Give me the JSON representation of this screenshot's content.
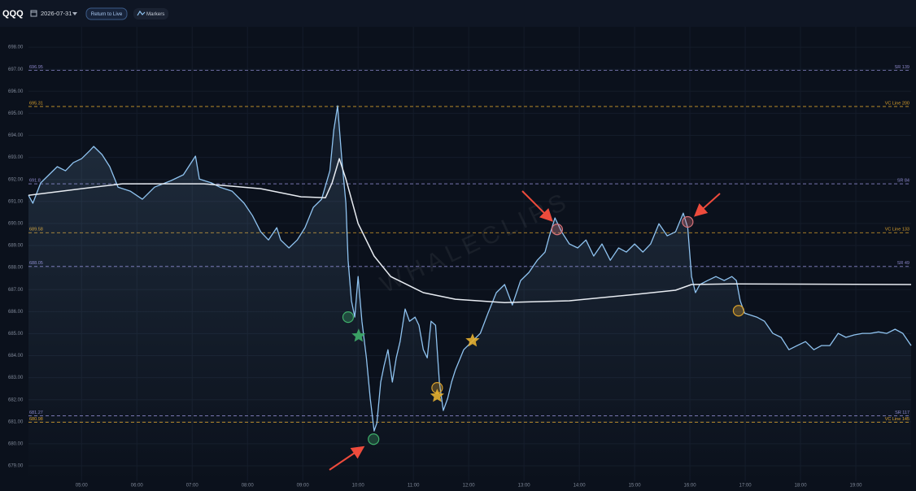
{
  "toolbar": {
    "ticker": "QQQ",
    "date": "2026-07-31",
    "buttons": [
      "Return to Live",
      "Markers"
    ]
  },
  "chart_data": {
    "type": "line",
    "watermark": "WHALECLIPS",
    "xlim": [
      4.04,
      20.0
    ],
    "ylim": [
      678.3,
      699.0
    ],
    "xticks": [
      {
        "value": 5,
        "label": "05:00"
      },
      {
        "value": 6,
        "label": "06:00"
      },
      {
        "value": 7,
        "label": "07:00"
      },
      {
        "value": 8,
        "label": "08:00"
      },
      {
        "value": 9,
        "label": "09:00"
      },
      {
        "value": 10,
        "label": "10:00"
      },
      {
        "value": 11,
        "label": "11:00"
      },
      {
        "value": 12,
        "label": "12:00"
      },
      {
        "value": 13,
        "label": "13:00"
      },
      {
        "value": 14,
        "label": "14:00"
      },
      {
        "value": 15,
        "label": "15:00"
      },
      {
        "value": 16,
        "label": "16:00"
      },
      {
        "value": 17,
        "label": "17:00"
      },
      {
        "value": 18,
        "label": "18:00"
      },
      {
        "value": 19,
        "label": "19:00"
      }
    ],
    "yticks": [
      {
        "value": 679,
        "label": "679.00"
      },
      {
        "value": 680,
        "label": "680.00"
      },
      {
        "value": 681,
        "label": "681.00"
      },
      {
        "value": 682,
        "label": "682.00"
      },
      {
        "value": 683,
        "label": "683.00"
      },
      {
        "value": 684,
        "label": "684.00"
      },
      {
        "value": 685,
        "label": "685.00"
      },
      {
        "value": 686,
        "label": "686.00"
      },
      {
        "value": 687,
        "label": "687.00"
      },
      {
        "value": 688,
        "label": "688.00"
      },
      {
        "value": 689,
        "label": "689.00"
      },
      {
        "value": 690,
        "label": "690.00"
      },
      {
        "value": 691,
        "label": "691.00"
      },
      {
        "value": 692,
        "label": "692.00"
      },
      {
        "value": 693,
        "label": "693.00"
      },
      {
        "value": 694,
        "label": "694.00"
      },
      {
        "value": 695,
        "label": "695.00"
      },
      {
        "value": 696,
        "label": "696.00"
      },
      {
        "value": 697,
        "label": "697.00"
      },
      {
        "value": 698,
        "label": "698.00"
      }
    ],
    "grid": true,
    "series": [
      {
        "color": "#8fc3f0",
        "area": true,
        "x": [
          4.04,
          4.12,
          4.26,
          4.41,
          4.56,
          4.71,
          4.85,
          5.0,
          5.15,
          5.22,
          5.37,
          5.51,
          5.66,
          5.88,
          6.1,
          6.32,
          6.62,
          6.84,
          7.06,
          7.13,
          7.35,
          7.5,
          7.72,
          7.94,
          8.09,
          8.24,
          8.38,
          8.53,
          8.6,
          8.75,
          8.9,
          9.04,
          9.19,
          9.34,
          9.49,
          9.56,
          9.63,
          9.71,
          9.78,
          9.82,
          9.88,
          9.94,
          10.0,
          10.07,
          10.15,
          10.22,
          10.29,
          10.34,
          10.41,
          10.47,
          10.54,
          10.62,
          10.69,
          10.76,
          10.85,
          10.93,
          11.03,
          11.1,
          11.18,
          11.25,
          11.32,
          11.4,
          11.47,
          11.54,
          11.62,
          11.69,
          11.76,
          11.91,
          12.06,
          12.21,
          12.35,
          12.5,
          12.65,
          12.79,
          12.94,
          13.09,
          13.24,
          13.38,
          13.46,
          13.56,
          13.68,
          13.82,
          13.97,
          14.12,
          14.26,
          14.41,
          14.56,
          14.71,
          14.85,
          15.0,
          15.15,
          15.29,
          15.44,
          15.59,
          15.74,
          15.88,
          15.96,
          16.03,
          16.1,
          16.18,
          16.32,
          16.47,
          16.62,
          16.76,
          16.84,
          16.91,
          16.99,
          17.21,
          17.35,
          17.5,
          17.65,
          17.79,
          17.94,
          18.09,
          18.24,
          18.38,
          18.53,
          18.68,
          18.82,
          18.97,
          19.12,
          19.26,
          19.41,
          19.56,
          19.71,
          19.85,
          20.0
        ],
        "values": [
          691.28,
          690.92,
          691.84,
          692.21,
          692.58,
          692.39,
          692.76,
          692.94,
          693.31,
          693.5,
          693.13,
          692.58,
          691.65,
          691.47,
          691.1,
          691.65,
          691.95,
          692.21,
          693.06,
          692.02,
          691.84,
          691.65,
          691.47,
          690.92,
          690.36,
          689.62,
          689.25,
          689.81,
          689.25,
          688.89,
          689.25,
          689.81,
          690.73,
          691.1,
          692.39,
          694.24,
          695.34,
          692.76,
          690.92,
          688.33,
          686.49,
          685.75,
          687.59,
          685.56,
          683.9,
          682.06,
          680.58,
          680.95,
          682.8,
          683.54,
          684.27,
          682.8,
          683.9,
          684.64,
          686.12,
          685.56,
          685.75,
          685.38,
          684.27,
          683.9,
          685.56,
          685.38,
          682.8,
          681.51,
          682.06,
          682.8,
          683.35,
          684.27,
          684.64,
          685.01,
          685.93,
          686.86,
          687.23,
          686.3,
          687.41,
          687.78,
          688.33,
          688.7,
          689.44,
          690.25,
          689.62,
          689.07,
          688.89,
          689.25,
          688.52,
          689.07,
          688.33,
          688.89,
          688.7,
          689.07,
          688.7,
          689.07,
          689.99,
          689.44,
          689.62,
          690.47,
          689.81,
          687.59,
          686.86,
          687.23,
          687.41,
          687.59,
          687.41,
          687.59,
          687.41,
          686.49,
          685.93,
          685.75,
          685.56,
          685.01,
          684.83,
          684.27,
          684.46,
          684.64,
          684.27,
          684.46,
          684.46,
          685.01,
          684.83,
          684.94,
          685.01,
          685.01,
          685.08,
          685.01,
          685.2,
          685.01,
          684.46
        ]
      },
      {
        "color": "#e8ecf2",
        "area": false,
        "x": [
          4.04,
          5.0,
          5.74,
          7.21,
          8.24,
          8.97,
          9.41,
          9.53,
          9.66,
          9.78,
          10.0,
          10.29,
          10.59,
          11.18,
          11.76,
          12.65,
          13.82,
          15.0,
          15.74,
          16.03,
          16.76,
          20.0
        ],
        "values": [
          691.28,
          691.58,
          691.8,
          691.8,
          691.58,
          691.21,
          691.17,
          691.84,
          692.94,
          692.02,
          690.0,
          688.52,
          687.59,
          686.86,
          686.56,
          686.41,
          686.49,
          686.78,
          686.97,
          687.23,
          687.26,
          687.23
        ]
      }
    ],
    "levels": [
      {
        "value": 696.95,
        "name": "SR 139",
        "color": "#8b86c9"
      },
      {
        "value": 695.31,
        "name": "VC Line 200",
        "color": "#d9a02c"
      },
      {
        "value": 691.8,
        "name": "SR 84",
        "color": "#8b86c9"
      },
      {
        "value": 689.58,
        "name": "VC Line 133",
        "color": "#d9a02c"
      },
      {
        "value": 688.05,
        "name": "SR 49",
        "color": "#8b86c9"
      },
      {
        "value": 681.27,
        "name": "SR 117",
        "color": "#8b86c9"
      },
      {
        "value": 680.98,
        "name": "VC Line 145",
        "color": "#d9a02c"
      }
    ],
    "markers": [
      {
        "x": 9.82,
        "y": 685.75,
        "shape": "circle",
        "color": "#3fae6a"
      },
      {
        "x": 10.01,
        "y": 684.9,
        "shape": "star",
        "color": "#3fae6a"
      },
      {
        "x": 10.28,
        "y": 680.21,
        "shape": "circle",
        "color": "#3fae6a"
      },
      {
        "x": 11.43,
        "y": 682.54,
        "shape": "circle",
        "color": "#d9a02c"
      },
      {
        "x": 11.43,
        "y": 682.17,
        "shape": "star",
        "color": "#e6b030"
      },
      {
        "x": 12.07,
        "y": 684.68,
        "shape": "star",
        "color": "#e6b030"
      },
      {
        "x": 13.6,
        "y": 689.73,
        "shape": "circle",
        "color": "#d9737a"
      },
      {
        "x": 15.96,
        "y": 690.07,
        "shape": "circle",
        "color": "#d9737a"
      },
      {
        "x": 16.88,
        "y": 686.04,
        "shape": "circle",
        "color": "#d9a02c"
      }
    ]
  }
}
